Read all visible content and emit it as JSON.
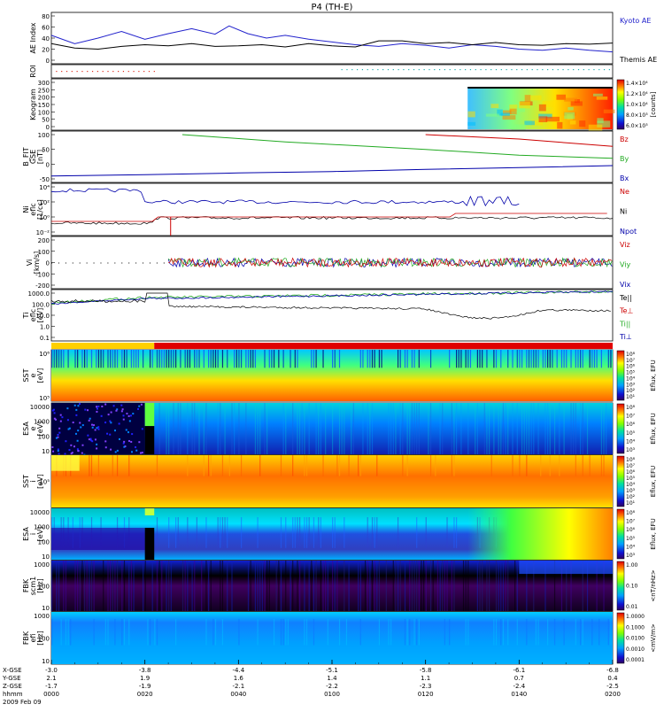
{
  "chart_data": {
    "type": "line",
    "title": "P4 (TH-E)",
    "date_label": "2009 Feb 09",
    "time_ticks": [
      "0000",
      "0020",
      "0040",
      "0100",
      "0120",
      "0140",
      "0200"
    ],
    "x_labels": [
      {
        "name": "X-GSE",
        "values": [
          "-3.0",
          "-3.8",
          "-4.4",
          "-5.1",
          "-5.8",
          "-6.1",
          "-6.8"
        ]
      },
      {
        "name": "Y-GSE",
        "values": [
          "2.1",
          "1.9",
          "1.6",
          "1.4",
          "1.1",
          "0.7",
          "0.4"
        ]
      },
      {
        "name": "Z-GSE",
        "values": [
          "-1.7",
          "-1.9",
          "-2.1",
          "-2.2",
          "-2.3",
          "-2.4",
          "-2.5"
        ]
      },
      {
        "name": "hhmm",
        "values": [
          "0000",
          "0020",
          "0040",
          "0100",
          "0120",
          "0140",
          "0200"
        ]
      }
    ],
    "panels": [
      {
        "id": "ae",
        "ylabel": "AE Index",
        "yticks": [
          "80",
          "60",
          "40",
          "20",
          "0"
        ],
        "ylim": [
          0,
          80
        ],
        "series": [
          {
            "name": "Kyoto AE",
            "color": "#2222cc",
            "x": [
              0,
              5,
              10,
              15,
              20,
              25,
              30,
              35,
              38,
              42,
              46,
              50,
              55,
              60,
              65,
              70,
              75,
              80,
              85,
              90,
              95,
              100,
              105,
              110,
              115,
              120
            ],
            "y": [
              45,
              30,
              40,
              52,
              38,
              48,
              57,
              47,
              62,
              48,
              40,
              45,
              38,
              33,
              28,
              25,
              30,
              27,
              22,
              28,
              25,
              20,
              18,
              22,
              18,
              15
            ]
          },
          {
            "name": "Themis AE",
            "color": "#000000",
            "x": [
              0,
              5,
              10,
              15,
              20,
              25,
              30,
              35,
              40,
              45,
              50,
              55,
              60,
              65,
              70,
              75,
              80,
              85,
              90,
              95,
              100,
              105,
              110,
              115,
              120
            ],
            "y": [
              30,
              22,
              20,
              25,
              28,
              26,
              30,
              25,
              26,
              28,
              24,
              30,
              26,
              24,
              35,
              35,
              30,
              32,
              28,
              32,
              28,
              27,
              30,
              29,
              31
            ]
          }
        ]
      },
      {
        "id": "roi",
        "ylabel": "ROI"
      },
      {
        "id": "keogram",
        "ylabel": "Keogram",
        "yticks": [
          "300",
          "250",
          "200",
          "150",
          "100",
          "50",
          "0"
        ],
        "colorbar": {
          "label": "[counts]",
          "ticks": [
            "1.4×10⁴",
            "1.2×10⁴",
            "1.0×10⁴",
            "8.0×10³",
            "6.0×10³"
          ]
        }
      },
      {
        "id": "bfit",
        "ylabel": "B_FIT",
        "ylabel2": "GSE",
        "yunit": "[nT]",
        "yticks": [
          "100",
          "50",
          "0",
          "-50"
        ],
        "ylim": [
          -50,
          100
        ],
        "series": [
          {
            "name": "Bz",
            "color": "#cc0000",
            "x": [
              80,
              100,
              120
            ],
            "y": [
              100,
              85,
              60
            ]
          },
          {
            "name": "By",
            "color": "#22aa22",
            "x": [
              28,
              50,
              80,
              100,
              120
            ],
            "y": [
              100,
              75,
              50,
              30,
              20
            ]
          },
          {
            "name": "Bx",
            "color": "#0000aa",
            "x": [
              0,
              20,
              40,
              60,
              80,
              100,
              120
            ],
            "y": [
              -40,
              -36,
              -30,
              -25,
              -18,
              -12,
              -5
            ]
          }
        ]
      },
      {
        "id": "ni",
        "ylabel": "Ni",
        "ylabel2": "eflc",
        "yunit": "[1/cc]",
        "yticks": [
          "10⁴",
          "10²",
          "10⁰",
          "10⁻²"
        ],
        "series": [
          {
            "name": "Ne",
            "color": "#cc0000"
          },
          {
            "name": "Ni",
            "color": "#000000"
          },
          {
            "name": "Npot",
            "color": "#0000aa"
          }
        ]
      },
      {
        "id": "vi",
        "ylabel": "Vi",
        "yunit": "[km/s]",
        "yticks": [
          "200",
          "100",
          "0",
          "-100",
          "-200"
        ],
        "ylim": [
          -200,
          200
        ],
        "series": [
          {
            "name": "Viz",
            "color": "#cc0000"
          },
          {
            "name": "Viy",
            "color": "#22aa22"
          },
          {
            "name": "Vix",
            "color": "#0000aa"
          }
        ]
      },
      {
        "id": "ti",
        "ylabel": "Ti",
        "ylabel2": "eflc",
        "yunit": "[eV]",
        "yticks": [
          "1000.0",
          "100.0",
          "10.0",
          "1.0",
          "0.1"
        ],
        "series": [
          {
            "name": "Te||",
            "color": "#000000"
          },
          {
            "name": "Te⊥",
            "color": "#cc0000"
          },
          {
            "name": "Ti||",
            "color": "#22aa22"
          },
          {
            "name": "Ti⊥",
            "color": "#0000aa"
          }
        ]
      },
      {
        "id": "sst_e",
        "ylabel": "SST",
        "ylabel2": "e",
        "yunit": "[eV]",
        "yticks": [
          "10⁶",
          "10⁵"
        ],
        "colorbar_label": "Eflux, EFU",
        "colorbar_ticks": [
          "10⁸",
          "10⁷",
          "10⁶",
          "10⁵",
          "10⁴",
          "10³",
          "10²",
          "10¹"
        ]
      },
      {
        "id": "esa_e",
        "ylabel": "ESA",
        "ylabel2": "e",
        "yunit": "[eV]",
        "yticks": [
          "10000",
          "1000",
          "100",
          "10"
        ],
        "colorbar_label": "Eflux, EFU",
        "colorbar_ticks": [
          "10⁸",
          "10⁷",
          "10⁶",
          "10⁵",
          "10⁴",
          "10³"
        ]
      },
      {
        "id": "sst_i",
        "ylabel": "SST",
        "ylabel2": "i",
        "yunit": "[eV]",
        "yticks": [
          "10⁵"
        ],
        "colorbar_label": "Eflux, EFU",
        "colorbar_ticks": [
          "10⁸",
          "10⁷",
          "10⁶",
          "10⁵",
          "10⁴",
          "10³",
          "10²",
          "10¹"
        ]
      },
      {
        "id": "esa_i",
        "ylabel": "ESA",
        "ylabel2": "i",
        "yunit": "[eV]",
        "yticks": [
          "10000",
          "1000",
          "100",
          "10"
        ],
        "colorbar_label": "Eflux, EFU",
        "colorbar_ticks": [
          "10⁸",
          "10⁷",
          "10⁶",
          "10⁵",
          "10⁴",
          "10³"
        ]
      },
      {
        "id": "fbk_b",
        "ylabel": "FBK",
        "ylabel2": "scm1",
        "yunit": "[Hz]",
        "yticks": [
          "1000",
          "100",
          "10"
        ],
        "colorbar_label": "<nT/nHz>",
        "colorbar_ticks": [
          "1.00",
          "0.10",
          "0.01"
        ]
      },
      {
        "id": "fbk_e",
        "ylabel": "FBK",
        "ylabel2": "efi",
        "yunit": "[Hz]",
        "yticks": [
          "1000",
          "100",
          "10"
        ],
        "colorbar_label": "<mV/m>",
        "colorbar_ticks": [
          "1.0000",
          "0.1000",
          "0.0100",
          "0.0010",
          "0.0001"
        ]
      }
    ]
  }
}
